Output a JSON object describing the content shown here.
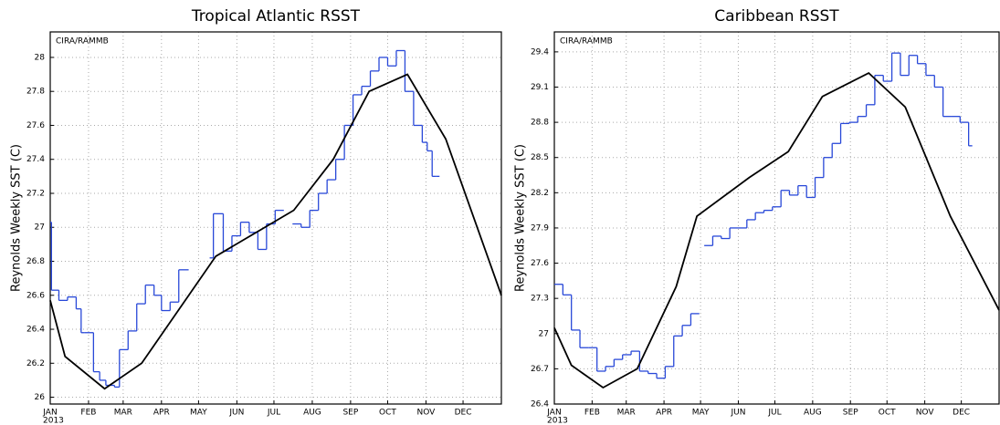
{
  "chart_data": [
    {
      "type": "line",
      "title": "Tropical Atlantic RSST",
      "ylabel": "Reynolds Weekly SST (C)",
      "annotation": "CIRA/RAMMB",
      "x_sublabel": "2013",
      "grid": true,
      "xlim": [
        0,
        365
      ],
      "ylim": [
        25.96,
        28.15
      ],
      "xticks": [
        {
          "value": 0,
          "label": "JAN"
        },
        {
          "value": 31,
          "label": "FEB"
        },
        {
          "value": 59,
          "label": "MAR"
        },
        {
          "value": 90,
          "label": "APR"
        },
        {
          "value": 120,
          "label": "MAY"
        },
        {
          "value": 151,
          "label": "JUN"
        },
        {
          "value": 181,
          "label": "JUL"
        },
        {
          "value": 212,
          "label": "AUG"
        },
        {
          "value": 243,
          "label": "SEP"
        },
        {
          "value": 273,
          "label": "OCT"
        },
        {
          "value": 304,
          "label": "NOV"
        },
        {
          "value": 334,
          "label": "DEC"
        }
      ],
      "yticks": [
        26,
        26.2,
        26.4,
        26.6,
        26.8,
        27,
        27.2,
        27.4,
        27.6,
        27.8,
        28
      ],
      "series": [
        {
          "color": "#2848d8",
          "step": true,
          "x": [
            0,
            1,
            7,
            14,
            21,
            25,
            28,
            35,
            40,
            45,
            52,
            56,
            63,
            70,
            77,
            84,
            90,
            97,
            104,
            112,
            129,
            132,
            140,
            147,
            154,
            161,
            168,
            175,
            182,
            189,
            196,
            203,
            210,
            217,
            224,
            231,
            238,
            245,
            252,
            259,
            266,
            273,
            280,
            287,
            294,
            301,
            305,
            309,
            312
          ],
          "values": [
            27.03,
            26.63,
            26.57,
            26.59,
            26.52,
            26.38,
            26.38,
            26.15,
            26.1,
            26.07,
            26.06,
            26.28,
            26.39,
            26.55,
            26.66,
            26.6,
            26.51,
            26.56,
            26.75,
            null,
            26.82,
            27.08,
            26.86,
            26.95,
            27.03,
            26.97,
            26.87,
            27.02,
            27.1,
            null,
            27.02,
            27.0,
            27.1,
            27.2,
            27.28,
            27.4,
            27.6,
            27.78,
            27.83,
            27.92,
            28.0,
            27.95,
            28.04,
            27.8,
            27.6,
            27.5,
            27.45,
            27.3,
            27.3
          ]
        },
        {
          "color": "#000000",
          "step": false,
          "x": [
            0,
            12,
            44,
            74,
            134,
            197,
            229,
            258,
            289,
            320,
            365
          ],
          "values": [
            26.57,
            26.24,
            26.05,
            26.2,
            26.83,
            27.1,
            27.4,
            27.8,
            27.9,
            27.52,
            26.6
          ]
        }
      ]
    },
    {
      "type": "line",
      "title": "Caribbean RSST",
      "ylabel": "Reynolds Weekly SST (C)",
      "annotation": "CIRA/RAMMB",
      "x_sublabel": "2013",
      "grid": true,
      "xlim": [
        0,
        365
      ],
      "ylim": [
        26.4,
        29.57
      ],
      "xticks": [
        {
          "value": 0,
          "label": "JAN"
        },
        {
          "value": 31,
          "label": "FEB"
        },
        {
          "value": 59,
          "label": "MAR"
        },
        {
          "value": 90,
          "label": "APR"
        },
        {
          "value": 120,
          "label": "MAY"
        },
        {
          "value": 151,
          "label": "JUN"
        },
        {
          "value": 181,
          "label": "JUL"
        },
        {
          "value": 212,
          "label": "AUG"
        },
        {
          "value": 243,
          "label": "SEP"
        },
        {
          "value": 273,
          "label": "OCT"
        },
        {
          "value": 304,
          "label": "NOV"
        },
        {
          "value": 334,
          "label": "DEC"
        }
      ],
      "yticks": [
        26.4,
        26.7,
        27,
        27.3,
        27.6,
        27.9,
        28.2,
        28.5,
        28.8,
        29.1,
        29.4
      ],
      "series": [
        {
          "color": "#2848d8",
          "step": true,
          "x": [
            0,
            7,
            14,
            21,
            28,
            35,
            42,
            49,
            56,
            63,
            70,
            77,
            84,
            91,
            98,
            105,
            112,
            119,
            123,
            130,
            137,
            144,
            151,
            158,
            165,
            172,
            179,
            186,
            193,
            200,
            207,
            214,
            221,
            228,
            235,
            242,
            249,
            256,
            263,
            270,
            277,
            284,
            291,
            298,
            305,
            312,
            319,
            326,
            333,
            340
          ],
          "values": [
            27.42,
            27.33,
            27.03,
            26.88,
            26.88,
            26.68,
            26.72,
            26.78,
            26.82,
            26.85,
            26.68,
            26.66,
            26.62,
            26.72,
            26.98,
            27.07,
            27.17,
            null,
            27.75,
            27.83,
            27.81,
            27.9,
            27.9,
            27.97,
            28.03,
            28.05,
            28.08,
            28.22,
            28.18,
            28.26,
            28.16,
            28.33,
            28.5,
            28.62,
            28.79,
            28.8,
            28.85,
            28.95,
            29.2,
            29.15,
            29.39,
            29.2,
            29.37,
            29.3,
            29.2,
            29.1,
            28.85,
            28.85,
            28.8,
            28.6
          ]
        },
        {
          "color": "#000000",
          "step": false,
          "x": [
            0,
            14,
            40,
            68,
            100,
            117,
            160,
            192,
            220,
            258,
            288,
            325,
            365
          ],
          "values": [
            27.05,
            26.73,
            26.54,
            26.7,
            27.4,
            28.0,
            28.33,
            28.55,
            29.02,
            29.22,
            28.93,
            28.0,
            27.2
          ]
        }
      ]
    }
  ]
}
